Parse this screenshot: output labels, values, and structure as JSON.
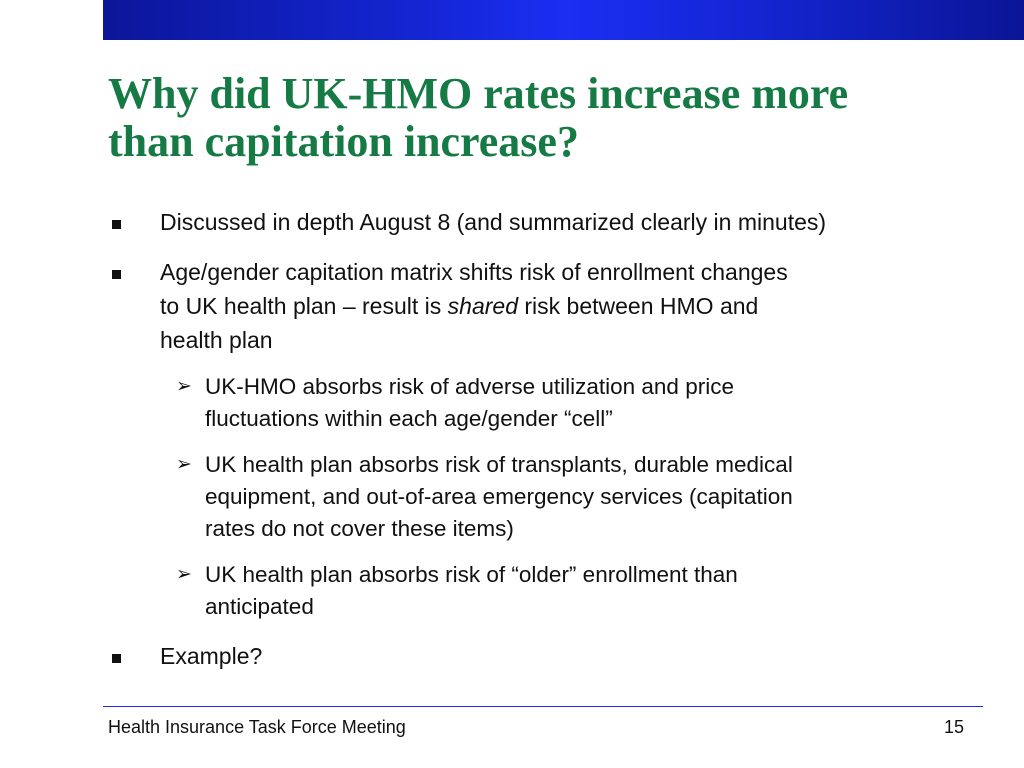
{
  "slide": {
    "title_lines": [
      "Why did UK-HMO rates increase more",
      "than capitation increase?"
    ],
    "bullets": [
      {
        "lines": [
          "Discussed in depth August 8 (and summarized clearly in minutes)"
        ]
      },
      {
        "line1": "Age/gender capitation matrix shifts risk of enrollment changes",
        "line2_before": "to UK health plan – result is ",
        "line2_emphasis": "shared",
        "line2_after": " risk between HMO and",
        "line3": "health plan",
        "sub_bullets": [
          {
            "lines": [
              "UK-HMO absorbs risk of adverse utilization and price",
              "fluctuations within each age/gender “cell”"
            ]
          },
          {
            "lines": [
              "UK health plan absorbs risk of transplants, durable medical",
              "equipment, and out-of-area emergency services (capitation",
              "rates do not cover these items)"
            ]
          },
          {
            "lines": [
              "UK health plan absorbs risk of “older” enrollment than",
              "anticipated"
            ]
          }
        ]
      },
      {
        "lines": [
          "Example?"
        ]
      }
    ],
    "sub_bullet_marker": "➢"
  },
  "footer": {
    "left": "Health Insurance Task Force Meeting",
    "page_number": "15"
  },
  "colors": {
    "title": "#167a45",
    "top_bar": "#1426d4",
    "footer_rule": "#1b2ef2"
  }
}
